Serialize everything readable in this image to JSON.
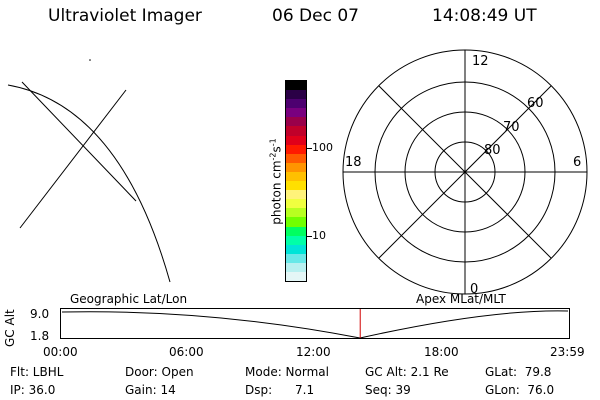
{
  "header": {
    "title": "Ultraviolet Imager",
    "date": "06 Dec 07",
    "time": "14:08:49 UT"
  },
  "colorbar": {
    "label": "photon cm",
    "label_exp1": "-2",
    "label_mid": "s",
    "label_exp2": "-1",
    "tick_100": "100",
    "tick_10": "10",
    "colors": [
      "#000000",
      "#2a0046",
      "#4d0070",
      "#79007f",
      "#99004a",
      "#c0002a",
      "#e0001a",
      "#ff1a00",
      "#ff5a00",
      "#ff9400",
      "#ffc000",
      "#ffe000",
      "#fff37a",
      "#f0ff40",
      "#b8ff20",
      "#70ff00",
      "#00ff60",
      "#00ffa8",
      "#00e4d8",
      "#68e8e8",
      "#b8f0f0",
      "#e4f6f6"
    ]
  },
  "polar": {
    "label_top": "12",
    "label_bottom": "0",
    "label_left": "18",
    "label_right": "6",
    "ring_80": "80",
    "ring_70": "70",
    "ring_60": "60"
  },
  "timeline": {
    "left_caption": "Geographic Lat/Lon",
    "right_caption": "Apex  MLat/MLT",
    "ylabel": "GC Alt",
    "ytick_top": "9.0",
    "ytick_bottom": "1.8",
    "xticks": [
      "00:00",
      "06:00",
      "12:00",
      "18:00",
      "23:59"
    ],
    "current_time_fraction": 0.589,
    "marker_color": "#d00000"
  },
  "info": {
    "flt": "Flt: LBHL",
    "door": "Door: Open",
    "mode": "Mode: Normal",
    "gcalt": "GC Alt: 2.1 Re",
    "glat": "GLat:  79.8",
    "ip": "IP: 36.0",
    "gain": "Gain: 14",
    "dsp": "Dsp:      7.1",
    "seq": "Seq: 39",
    "glon": "GLon:  76.0"
  }
}
